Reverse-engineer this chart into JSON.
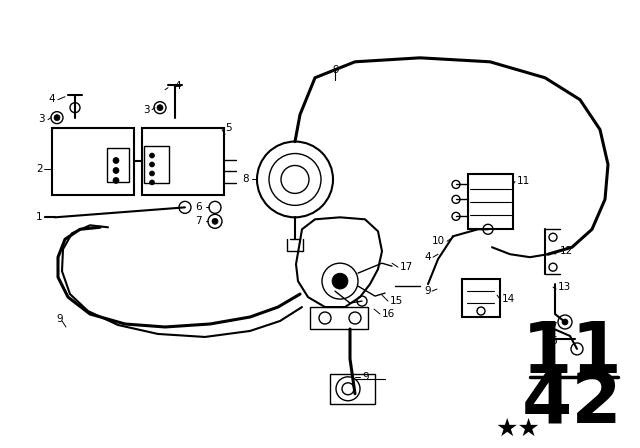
{
  "bg_color": "#ffffff",
  "line_color": "#000000",
  "figsize": [
    6.4,
    4.48
  ],
  "dpi": 100,
  "page_top": "11",
  "page_bot": "42",
  "stars": "★★"
}
